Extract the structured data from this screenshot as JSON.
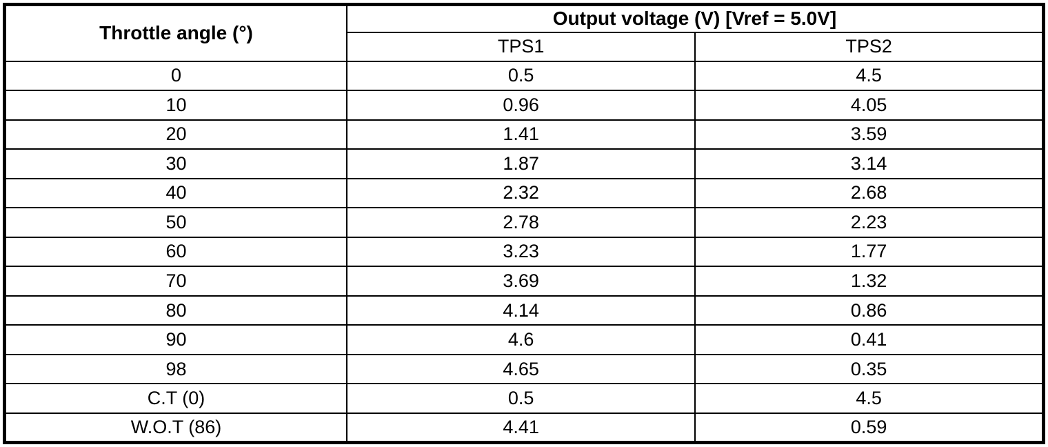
{
  "table": {
    "col1_header": "Throttle angle (°)",
    "group_header": "Output voltage (V) [Vref = 5.0V]",
    "sub_headers": [
      "TPS1",
      "TPS2"
    ],
    "rows": [
      {
        "angle": "0",
        "tps1": "0.5",
        "tps2": "4.5"
      },
      {
        "angle": "10",
        "tps1": "0.96",
        "tps2": "4.05"
      },
      {
        "angle": "20",
        "tps1": "1.41",
        "tps2": "3.59"
      },
      {
        "angle": "30",
        "tps1": "1.87",
        "tps2": "3.14"
      },
      {
        "angle": "40",
        "tps1": "2.32",
        "tps2": "2.68"
      },
      {
        "angle": "50",
        "tps1": "2.78",
        "tps2": "2.23"
      },
      {
        "angle": "60",
        "tps1": "3.23",
        "tps2": "1.77"
      },
      {
        "angle": "70",
        "tps1": "3.69",
        "tps2": "1.32"
      },
      {
        "angle": "80",
        "tps1": "4.14",
        "tps2": "0.86"
      },
      {
        "angle": "90",
        "tps1": "4.6",
        "tps2": "0.41"
      },
      {
        "angle": "98",
        "tps1": "4.65",
        "tps2": "0.35"
      },
      {
        "angle": "C.T (0)",
        "tps1": "0.5",
        "tps2": "4.5"
      },
      {
        "angle": "W.O.T (86)",
        "tps1": "4.41",
        "tps2": "0.59"
      }
    ]
  },
  "colors": {
    "border": "#000000",
    "text": "#000000",
    "background": "#ffffff"
  }
}
